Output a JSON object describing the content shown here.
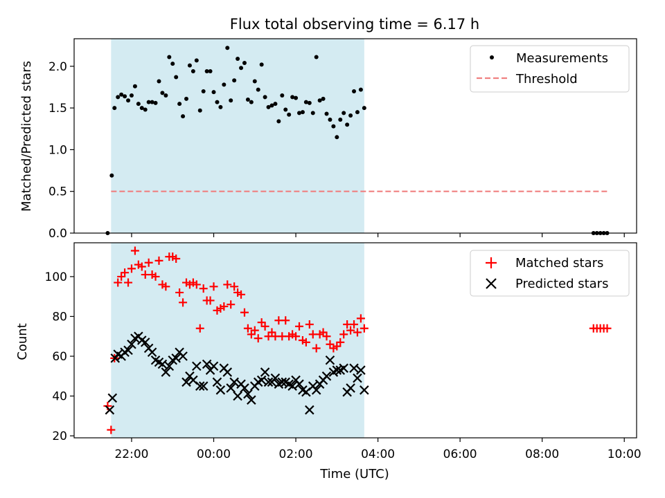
{
  "colors": {
    "shade": "#add8e6",
    "measurement": "#000000",
    "threshold": "#f08080",
    "matched": "#ff0000",
    "predicted": "#000000"
  },
  "chart_data": [
    {
      "type": "scatter",
      "title": "Flux total observing time = 6.17 h",
      "xlabel": "",
      "ylabel": "Matched/Predicted stars",
      "x_unit": "hours since 21:00 UTC",
      "xlim": [
        -0.4,
        13.3
      ],
      "ylim": [
        0.0,
        2.33
      ],
      "yticks": [
        0.0,
        0.5,
        1.0,
        1.5,
        2.0
      ],
      "ytick_labels": [
        "0.0",
        "0.5",
        "1.0",
        "1.5",
        "2.0"
      ],
      "shaded_span": {
        "x_start": "21:30",
        "x_end": "03:40"
      },
      "legend": {
        "position": "top-right",
        "entries": [
          "Measurements",
          "Threshold"
        ]
      },
      "threshold": {
        "name": "Threshold",
        "y": 0.5,
        "x_start": "21:30",
        "x_end": "09:35"
      },
      "measurements": {
        "name": "Measurements",
        "x": [
          "21:25",
          "21:31",
          "21:35",
          "21:40",
          "21:45",
          "21:50",
          "21:55",
          "22:00",
          "22:05",
          "22:10",
          "22:15",
          "22:20",
          "22:25",
          "22:30",
          "22:35",
          "22:40",
          "22:45",
          "22:50",
          "22:55",
          "23:00",
          "23:05",
          "23:10",
          "23:15",
          "23:20",
          "23:25",
          "23:30",
          "23:35",
          "23:40",
          "23:45",
          "23:50",
          "23:55",
          "00:00",
          "00:05",
          "00:10",
          "00:15",
          "00:20",
          "00:25",
          "00:30",
          "00:35",
          "00:40",
          "00:45",
          "00:50",
          "00:55",
          "01:00",
          "01:05",
          "01:10",
          "01:15",
          "01:20",
          "01:25",
          "01:30",
          "01:35",
          "01:40",
          "01:45",
          "01:50",
          "01:55",
          "02:00",
          "02:05",
          "02:10",
          "02:15",
          "02:20",
          "02:25",
          "02:30",
          "02:35",
          "02:40",
          "02:45",
          "02:50",
          "02:55",
          "03:00",
          "03:05",
          "03:10",
          "03:15",
          "03:20",
          "03:25",
          "03:30",
          "03:35",
          "03:40",
          "09:15",
          "09:20",
          "09:25",
          "09:30",
          "09:35"
        ],
        "y": [
          0.0,
          0.69,
          1.5,
          1.63,
          1.66,
          1.64,
          1.59,
          1.65,
          1.76,
          1.55,
          1.5,
          1.48,
          1.57,
          1.57,
          1.56,
          1.82,
          1.68,
          1.65,
          2.11,
          2.03,
          1.87,
          1.55,
          1.4,
          1.61,
          2.01,
          1.94,
          2.07,
          1.47,
          1.7,
          1.94,
          1.94,
          1.69,
          1.57,
          1.51,
          1.78,
          2.22,
          1.59,
          1.83,
          2.09,
          1.98,
          2.04,
          1.6,
          1.57,
          1.82,
          1.72,
          2.02,
          1.63,
          1.51,
          1.53,
          1.55,
          1.34,
          1.65,
          1.48,
          1.42,
          1.63,
          1.62,
          1.44,
          1.45,
          1.57,
          1.56,
          1.44,
          2.11,
          1.59,
          1.61,
          1.43,
          1.36,
          1.28,
          1.15,
          1.36,
          1.44,
          1.3,
          1.41,
          1.7,
          1.45,
          1.72,
          1.5,
          0.0,
          0.0,
          0.0,
          0.0,
          0.0
        ]
      }
    },
    {
      "type": "scatter",
      "xlabel": "Time (UTC)",
      "ylabel": "Count",
      "x_unit": "hours since 21:00 UTC",
      "xlim": [
        -0.4,
        13.3
      ],
      "ylim": [
        19,
        117
      ],
      "yticks": [
        20,
        40,
        60,
        80,
        100
      ],
      "ytick_labels": [
        "20",
        "40",
        "60",
        "80",
        "100"
      ],
      "xticks": [
        "22:00",
        "00:00",
        "02:00",
        "04:00",
        "06:00",
        "08:00",
        "10:00"
      ],
      "shaded_span": {
        "x_start": "21:30",
        "x_end": "03:40"
      },
      "legend": {
        "position": "top-right",
        "entries": [
          "Matched stars",
          "Predicted stars"
        ]
      },
      "series": [
        {
          "name": "Matched stars",
          "marker": "+",
          "x": [
            "21:25",
            "21:30",
            "21:35",
            "21:40",
            "21:45",
            "21:50",
            "21:55",
            "22:00",
            "22:05",
            "22:10",
            "22:15",
            "22:20",
            "22:25",
            "22:30",
            "22:35",
            "22:40",
            "22:45",
            "22:50",
            "22:55",
            "23:00",
            "23:05",
            "23:10",
            "23:15",
            "23:20",
            "23:25",
            "23:30",
            "23:35",
            "23:40",
            "23:45",
            "23:50",
            "23:55",
            "00:00",
            "00:05",
            "00:10",
            "00:15",
            "00:20",
            "00:25",
            "00:30",
            "00:35",
            "00:40",
            "00:45",
            "00:50",
            "00:55",
            "01:00",
            "01:05",
            "01:10",
            "01:15",
            "01:20",
            "01:25",
            "01:30",
            "01:35",
            "01:40",
            "01:45",
            "01:50",
            "01:55",
            "02:00",
            "02:05",
            "02:10",
            "02:15",
            "02:20",
            "02:25",
            "02:30",
            "02:35",
            "02:40",
            "02:45",
            "02:50",
            "02:55",
            "03:00",
            "03:05",
            "03:10",
            "03:15",
            "03:20",
            "03:25",
            "03:30",
            "03:35",
            "03:40",
            "09:15",
            "09:20",
            "09:25",
            "09:30",
            "09:35"
          ],
          "y": [
            35,
            23,
            59,
            97,
            100,
            102,
            97,
            104,
            113,
            106,
            105,
            101,
            107,
            101,
            100,
            108,
            96,
            95,
            110,
            110,
            109,
            92,
            87,
            97,
            96,
            97,
            96,
            74,
            94,
            88,
            88,
            95,
            83,
            84,
            85,
            96,
            86,
            95,
            92,
            91,
            82,
            74,
            71,
            73,
            69,
            77,
            75,
            70,
            72,
            70,
            78,
            70,
            78,
            70,
            71,
            70,
            75,
            68,
            67,
            76,
            71,
            64,
            71,
            72,
            70,
            66,
            64,
            65,
            67,
            71,
            76,
            73,
            76,
            72,
            79,
            74,
            74,
            74,
            74,
            74,
            74
          ]
        },
        {
          "name": "Predicted stars",
          "marker": "x",
          "x": [
            "21:28",
            "21:32",
            "21:36",
            "21:40",
            "21:45",
            "21:50",
            "21:55",
            "22:00",
            "22:05",
            "22:10",
            "22:15",
            "22:20",
            "22:25",
            "22:30",
            "22:35",
            "22:40",
            "22:45",
            "22:50",
            "22:55",
            "23:00",
            "23:05",
            "23:10",
            "23:15",
            "23:20",
            "23:25",
            "23:30",
            "23:35",
            "23:40",
            "23:45",
            "23:50",
            "23:55",
            "00:00",
            "00:05",
            "00:10",
            "00:15",
            "00:20",
            "00:25",
            "00:30",
            "00:35",
            "00:40",
            "00:45",
            "00:50",
            "00:55",
            "01:00",
            "01:05",
            "01:10",
            "01:15",
            "01:20",
            "01:25",
            "01:30",
            "01:35",
            "01:40",
            "01:45",
            "01:50",
            "01:55",
            "02:00",
            "02:05",
            "02:10",
            "02:15",
            "02:20",
            "02:25",
            "02:30",
            "02:35",
            "02:40",
            "02:45",
            "02:50",
            "02:55",
            "03:00",
            "03:05",
            "03:10",
            "03:15",
            "03:20",
            "03:25",
            "03:30",
            "03:35",
            "03:40"
          ],
          "y": [
            33,
            39,
            59,
            61,
            60,
            62,
            63,
            66,
            69,
            70,
            68,
            67,
            64,
            62,
            58,
            57,
            56,
            52,
            55,
            58,
            59,
            62,
            60,
            47,
            50,
            48,
            55,
            45,
            45,
            56,
            53,
            55,
            47,
            43,
            54,
            52,
            44,
            47,
            40,
            46,
            44,
            41,
            38,
            45,
            47,
            48,
            52,
            47,
            47,
            49,
            46,
            47,
            47,
            46,
            45,
            48,
            46,
            43,
            42,
            33,
            45,
            43,
            46,
            48,
            50,
            58,
            52,
            53,
            53,
            54,
            42,
            44,
            54,
            49,
            53,
            43
          ]
        }
      ]
    }
  ]
}
